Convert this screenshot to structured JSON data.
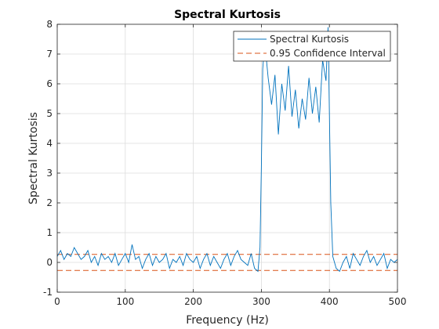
{
  "chart_data": {
    "type": "line",
    "title": "Spectral Kurtosis",
    "xlabel": "Frequency (Hz)",
    "ylabel": "Spectral Kurtosis",
    "xlim": [
      0,
      500
    ],
    "ylim": [
      -1,
      8
    ],
    "xticks": [
      0,
      100,
      200,
      300,
      400,
      500
    ],
    "xtick_labels": [
      "0",
      "100",
      "200",
      "300",
      "400",
      "500"
    ],
    "yticks": [
      -1,
      0,
      1,
      2,
      3,
      4,
      5,
      6,
      7,
      8
    ],
    "ytick_labels": [
      "-1",
      "0",
      "1",
      "2",
      "3",
      "4",
      "5",
      "6",
      "7",
      "8"
    ],
    "grid": true,
    "legend_position": "top-right",
    "series": [
      {
        "name": "Spectral Kurtosis",
        "color": "#0072BD",
        "style": "solid",
        "x": [
          0,
          5,
          10,
          15,
          20,
          25,
          30,
          35,
          40,
          45,
          50,
          55,
          60,
          65,
          70,
          75,
          80,
          85,
          90,
          95,
          100,
          105,
          110,
          115,
          120,
          125,
          130,
          135,
          140,
          145,
          150,
          155,
          160,
          165,
          170,
          175,
          180,
          185,
          190,
          195,
          200,
          205,
          210,
          215,
          220,
          225,
          230,
          235,
          240,
          245,
          250,
          255,
          260,
          265,
          270,
          275,
          280,
          285,
          290,
          295,
          298,
          300,
          302,
          305,
          310,
          315,
          320,
          325,
          330,
          335,
          340,
          345,
          350,
          355,
          360,
          365,
          370,
          375,
          380,
          385,
          390,
          395,
          398,
          400,
          402,
          405,
          410,
          415,
          420,
          425,
          430,
          435,
          440,
          445,
          450,
          455,
          460,
          465,
          470,
          475,
          480,
          485,
          490,
          495,
          500
        ],
        "values": [
          0.2,
          0.4,
          0.1,
          0.3,
          0.2,
          0.5,
          0.3,
          0.1,
          0.2,
          0.4,
          0.0,
          0.2,
          -0.1,
          0.3,
          0.1,
          0.2,
          0.0,
          0.3,
          -0.1,
          0.1,
          0.3,
          0.0,
          0.6,
          0.1,
          0.2,
          -0.2,
          0.1,
          0.3,
          -0.1,
          0.2,
          0.0,
          0.1,
          0.3,
          -0.2,
          0.1,
          0.0,
          0.2,
          -0.1,
          0.3,
          0.1,
          0.0,
          0.2,
          -0.2,
          0.1,
          0.3,
          -0.1,
          0.2,
          0.0,
          -0.2,
          0.1,
          0.3,
          -0.1,
          0.2,
          0.4,
          0.1,
          0.0,
          -0.1,
          0.3,
          -0.2,
          -0.3,
          0.5,
          3.2,
          6.5,
          7.4,
          6.2,
          5.3,
          6.3,
          4.3,
          6.0,
          5.1,
          6.6,
          4.9,
          5.8,
          4.5,
          5.5,
          4.8,
          6.2,
          5.0,
          5.9,
          4.7,
          6.8,
          6.1,
          7.9,
          5.0,
          2.0,
          0.2,
          -0.2,
          -0.3,
          0.0,
          0.2,
          -0.2,
          0.3,
          0.1,
          -0.1,
          0.2,
          0.4,
          0.0,
          0.2,
          -0.1,
          0.1,
          0.3,
          -0.2,
          0.1,
          0.0,
          0.1
        ]
      },
      {
        "name": "0.95 Confidence Interval",
        "color": "#D95319",
        "style": "dashed",
        "upper": 0.27,
        "lower": -0.27
      }
    ]
  }
}
